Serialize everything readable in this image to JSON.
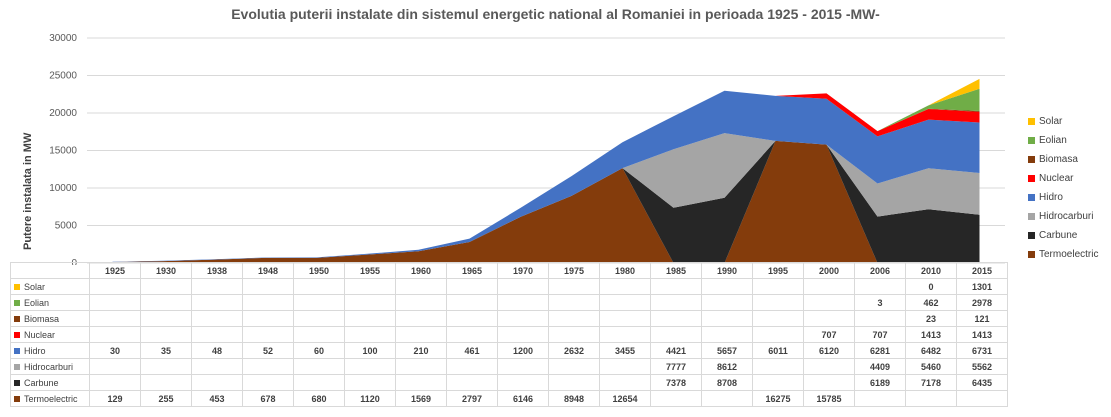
{
  "chart_data": {
    "type": "area",
    "title": "Evolutia puterii instalate din sistemul energetic national al Romaniei in perioada 1925 - 2015 -MW-",
    "ylabel": "Putere instalata in MW",
    "xlabel": "",
    "ylim": [
      0,
      30000
    ],
    "yticks": [
      "0",
      "5000",
      "10000",
      "15000",
      "20000",
      "25000",
      "30000"
    ],
    "grid": true,
    "legend_position": "right",
    "categories": [
      "1925",
      "1930",
      "1938",
      "1948",
      "1950",
      "1955",
      "1960",
      "1965",
      "1970",
      "1975",
      "1980",
      "1985",
      "1990",
      "1995",
      "2000",
      "2006",
      "2010",
      "2015"
    ],
    "series": [
      {
        "name": "Solar",
        "color": "#ffc000",
        "values": [
          null,
          null,
          null,
          null,
          null,
          null,
          null,
          null,
          null,
          null,
          null,
          null,
          null,
          null,
          null,
          null,
          0,
          1301
        ]
      },
      {
        "name": "Eolian",
        "color": "#70ad47",
        "values": [
          null,
          null,
          null,
          null,
          null,
          null,
          null,
          null,
          null,
          null,
          null,
          null,
          null,
          null,
          null,
          3,
          462,
          2978
        ]
      },
      {
        "name": "Biomasa",
        "color": "#843c0c",
        "values": [
          null,
          null,
          null,
          null,
          null,
          null,
          null,
          null,
          null,
          null,
          null,
          null,
          null,
          null,
          null,
          null,
          23,
          121
        ]
      },
      {
        "name": "Nuclear",
        "color": "#ff0000",
        "values": [
          null,
          null,
          null,
          null,
          null,
          null,
          null,
          null,
          null,
          null,
          null,
          null,
          null,
          null,
          707,
          707,
          1413,
          1413
        ]
      },
      {
        "name": "Hidro",
        "color": "#4472c4",
        "values": [
          30,
          35,
          48,
          52,
          60,
          100,
          210,
          461,
          1200,
          2632,
          3455,
          4421,
          5657,
          6011,
          6120,
          6281,
          6482,
          6731
        ]
      },
      {
        "name": "Hidrocarburi",
        "color": "#a5a5a5",
        "values": [
          null,
          null,
          null,
          null,
          null,
          null,
          null,
          null,
          null,
          null,
          null,
          7777,
          8612,
          null,
          null,
          4409,
          5460,
          5562
        ]
      },
      {
        "name": "Carbune",
        "color": "#262626",
        "values": [
          null,
          null,
          null,
          null,
          null,
          null,
          null,
          null,
          null,
          null,
          null,
          7378,
          8708,
          null,
          null,
          6189,
          7178,
          6435
        ]
      },
      {
        "name": "Termoelectric",
        "color": "#843c0c",
        "values": [
          129,
          255,
          453,
          678,
          680,
          1120,
          1569,
          2797,
          6146,
          8948,
          12654,
          null,
          null,
          16275,
          15785,
          null,
          null,
          null
        ]
      }
    ]
  }
}
